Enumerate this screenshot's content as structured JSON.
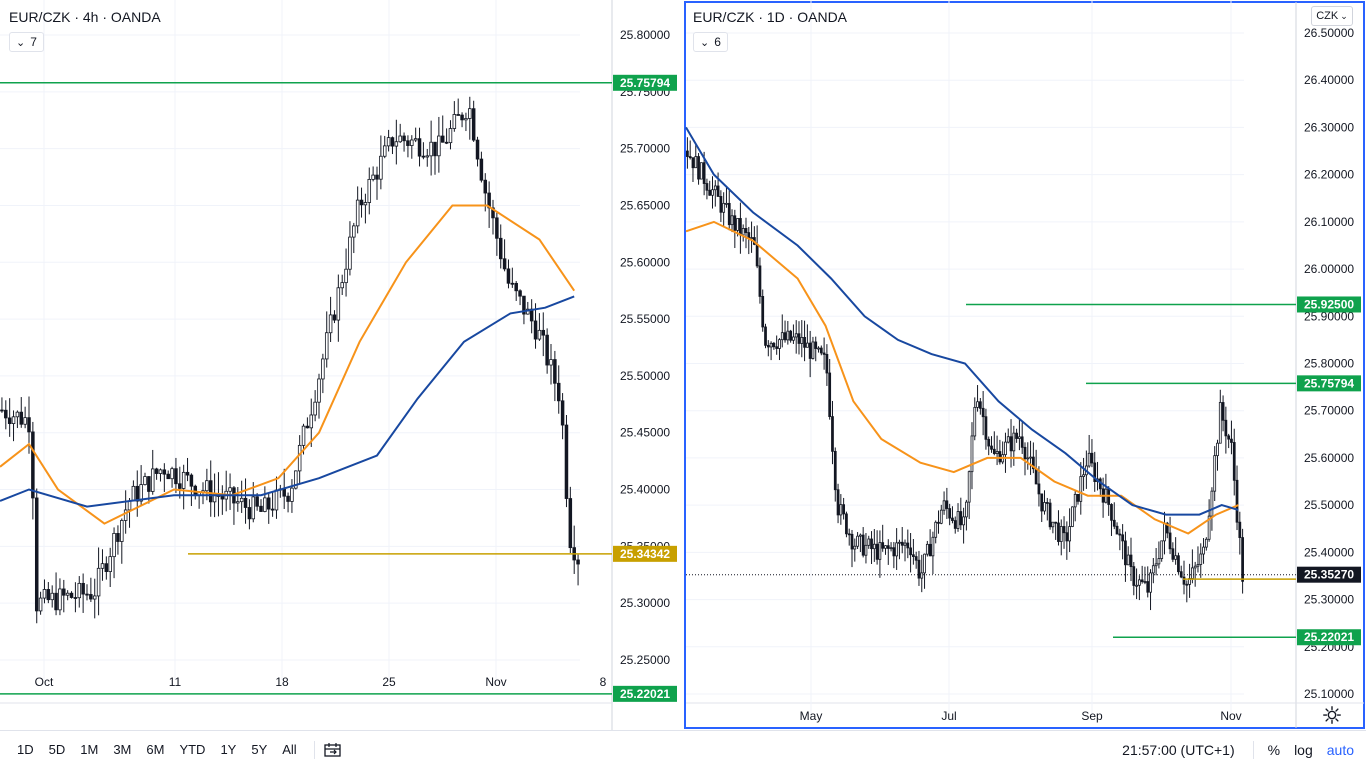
{
  "left_chart": {
    "title": "EUR/CZK · 4h · OANDA",
    "indicator_count": "7",
    "price_ticks": [
      "25.80000",
      "25.75000",
      "25.70000",
      "25.65000",
      "25.60000",
      "25.55000",
      "25.50000",
      "25.45000",
      "25.40000",
      "25.35000",
      "25.30000",
      "25.25000"
    ],
    "price_tick_values": [
      25.8,
      25.75,
      25.7,
      25.65,
      25.6,
      25.55,
      25.5,
      25.45,
      25.4,
      25.35,
      25.3,
      25.25
    ],
    "time_labels": [
      "Oct",
      "11",
      "18",
      "25",
      "Nov",
      "8"
    ],
    "levels": [
      {
        "value": 25.75794,
        "label": "25.75794",
        "color": "#0fa24d"
      },
      {
        "value": 25.34342,
        "label": "25.34342",
        "color": "#c8a000"
      },
      {
        "value": 25.22021,
        "label": "25.22021",
        "color": "#0fa24d"
      }
    ]
  },
  "right_chart": {
    "title": "EUR/CZK · 1D · OANDA",
    "indicator_count": "6",
    "currency": "CZK",
    "price_ticks": [
      "26.50000",
      "26.40000",
      "26.30000",
      "26.20000",
      "26.10000",
      "26.00000",
      "25.90000",
      "25.80000",
      "25.70000",
      "25.60000",
      "25.50000",
      "25.40000",
      "25.30000",
      "25.20000",
      "25.10000"
    ],
    "price_tick_values": [
      26.5,
      26.4,
      26.3,
      26.2,
      26.1,
      26.0,
      25.9,
      25.8,
      25.7,
      25.6,
      25.5,
      25.4,
      25.3,
      25.2,
      25.1
    ],
    "time_labels": [
      "May",
      "Jul",
      "Sep",
      "Nov"
    ],
    "current_price": "25.35270",
    "levels": [
      {
        "value": 25.925,
        "label": "25.92500",
        "color": "#0fa24d"
      },
      {
        "value": 25.75794,
        "label": "25.75794",
        "color": "#0fa24d"
      },
      {
        "value": 25.34342,
        "label": "",
        "color": "#c8a000"
      },
      {
        "value": 25.22021,
        "label": "25.22021",
        "color": "#0fa24d"
      }
    ]
  },
  "bottom_bar": {
    "timeframes": [
      "1D",
      "5D",
      "1M",
      "3M",
      "6M",
      "YTD",
      "1Y",
      "5Y",
      "All"
    ],
    "time": "21:57:00 (UTC+1)",
    "percent": "%",
    "log": "log",
    "auto": "auto"
  },
  "colors": {
    "up_down_candle": "#131722",
    "ma_fast": "#f7931a",
    "ma_slow": "#1848a0",
    "green_level": "#0fa24d",
    "gold_level": "#c8a000",
    "active_border": "#2962ff"
  }
}
